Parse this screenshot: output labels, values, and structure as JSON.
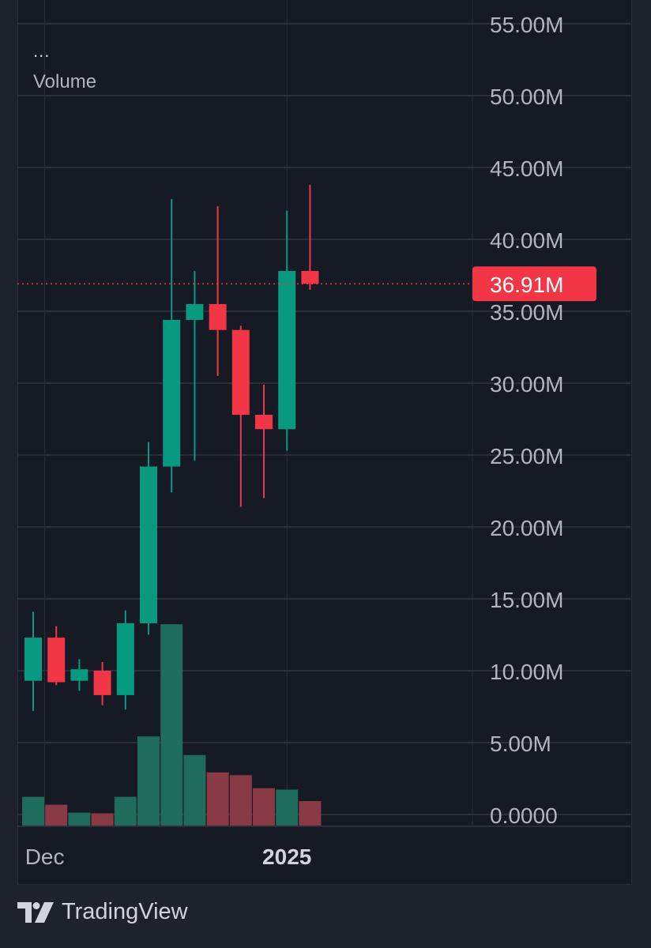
{
  "legend": {
    "dots": "...",
    "label": "Volume"
  },
  "brand": {
    "name": "TradingView",
    "logo_icon": "tradingview-logo-icon"
  },
  "colors": {
    "background": "#161a25",
    "grid": "#2a2e39",
    "up": "#089981",
    "down": "#f23645",
    "volume_up": "#1f6b5c",
    "volume_down": "#8a3a44",
    "axis_text": "#b2b5be",
    "price_tag": "#f23645"
  },
  "chart_data": {
    "type": "candlestick",
    "series_label": "Volume",
    "y_axis": {
      "position": "right",
      "ylim": [
        0,
        55
      ],
      "unit": "M",
      "ticks": [
        0,
        5,
        10,
        15,
        20,
        25,
        30,
        35,
        40,
        45,
        50,
        55
      ],
      "tick_labels": [
        "0.0000",
        "5.00M",
        "10.00M",
        "15.00M",
        "20.00M",
        "25.00M",
        "30.00M",
        "35.00M",
        "40.00M",
        "45.00M",
        "50.00M",
        "55.00M"
      ]
    },
    "x_axis": {
      "tick_labels": [
        {
          "label": "Dec",
          "bold": false,
          "candle_position": 0.5
        },
        {
          "label": "2025",
          "bold": true,
          "candle_position": 11.0
        }
      ]
    },
    "last_value": {
      "value": 36.91,
      "label": "36.91M"
    },
    "candles": [
      {
        "open": 9.3,
        "high": 14.1,
        "low": 7.2,
        "close": 12.3,
        "volume": 2.0
      },
      {
        "open": 12.3,
        "high": 13.1,
        "low": 9.0,
        "close": 9.2,
        "volume": 1.45
      },
      {
        "open": 9.3,
        "high": 10.8,
        "low": 8.6,
        "close": 10.1,
        "volume": 0.9
      },
      {
        "open": 10.0,
        "high": 10.6,
        "low": 7.6,
        "close": 8.3,
        "volume": 0.85
      },
      {
        "open": 8.3,
        "high": 14.2,
        "low": 7.3,
        "close": 13.3,
        "volume": 2.0
      },
      {
        "open": 13.3,
        "high": 25.9,
        "low": 12.5,
        "close": 24.2,
        "volume": 6.2
      },
      {
        "open": 24.2,
        "high": 42.8,
        "low": 22.4,
        "close": 34.4,
        "volume": 14.0
      },
      {
        "open": 34.4,
        "high": 37.8,
        "low": 24.6,
        "close": 35.5,
        "volume": 4.9
      },
      {
        "open": 35.5,
        "high": 42.3,
        "low": 30.5,
        "close": 33.7,
        "volume": 3.7
      },
      {
        "open": 33.7,
        "high": 34.0,
        "low": 21.4,
        "close": 27.8,
        "volume": 3.5
      },
      {
        "open": 27.8,
        "high": 29.9,
        "low": 22.0,
        "close": 26.8,
        "volume": 2.6
      },
      {
        "open": 26.8,
        "high": 42.0,
        "low": 25.3,
        "close": 37.8,
        "volume": 2.5
      },
      {
        "open": 37.8,
        "high": 43.8,
        "low": 36.5,
        "close": 36.91,
        "volume": 1.7
      }
    ]
  }
}
